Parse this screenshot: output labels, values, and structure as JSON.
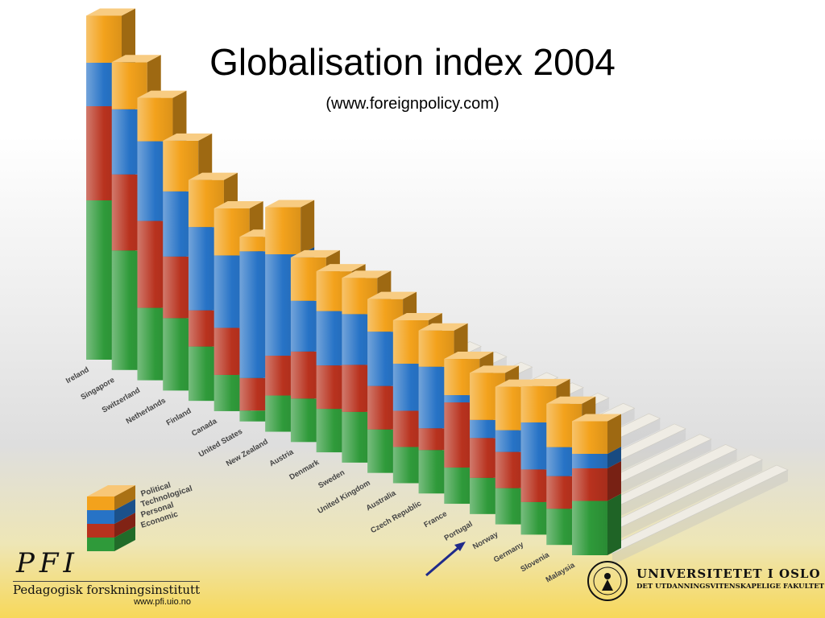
{
  "title": "Globalisation index 2004",
  "subtitle": "(www.foreignpolicy.com)",
  "chart_data": {
    "type": "bar",
    "stacked": true,
    "categories": [
      "Ireland",
      "Singapore",
      "Switzerland",
      "Netherlands",
      "Finland",
      "Canada",
      "United States",
      "New Zealand",
      "Austria",
      "Denmark",
      "Sweden",
      "United Kingdom",
      "Australia",
      "Czech Republic",
      "France",
      "Portugal",
      "Norway",
      "Germany",
      "Slovenia",
      "Malaysia"
    ],
    "series": [
      {
        "name": "Economic",
        "color": "#2f9a3a",
        "values": [
          44,
          33,
          20,
          20,
          15,
          10,
          3,
          10,
          12,
          12,
          14,
          12,
          10,
          12,
          10,
          10,
          10,
          9,
          10,
          15
        ]
      },
      {
        "name": "Personal",
        "color": "#b8321e",
        "values": [
          26,
          21,
          24,
          17,
          10,
          13,
          9,
          11,
          13,
          12,
          13,
          12,
          10,
          6,
          18,
          11,
          10,
          9,
          9,
          9
        ]
      },
      {
        "name": "Technological",
        "color": "#2773c6",
        "values": [
          12,
          18,
          22,
          18,
          23,
          20,
          35,
          28,
          14,
          15,
          14,
          15,
          13,
          17,
          2,
          5,
          6,
          13,
          8,
          4
        ]
      },
      {
        "name": "Political",
        "color": "#f3a21c",
        "values": [
          13,
          13,
          12,
          14,
          13,
          13,
          4,
          13,
          12,
          11,
          10,
          9,
          12,
          10,
          10,
          13,
          12,
          10,
          12,
          9
        ]
      }
    ],
    "legend": [
      "Political",
      "Technological",
      "Personal",
      "Economic"
    ],
    "legend_position": "bottom-left",
    "highlight": "Norway",
    "highlight_marker": "arrow"
  },
  "footer": {
    "pfi_mark": "PFI",
    "pfi_name": "Pedagogisk forskningsinstitutt",
    "pfi_url": "www.pfi.uio.no",
    "uio_name": "UNIVERSITETET I OSLO",
    "uio_faculty": "DET UTDANNINGSVITENSKAPELIGE FAKULTET"
  }
}
